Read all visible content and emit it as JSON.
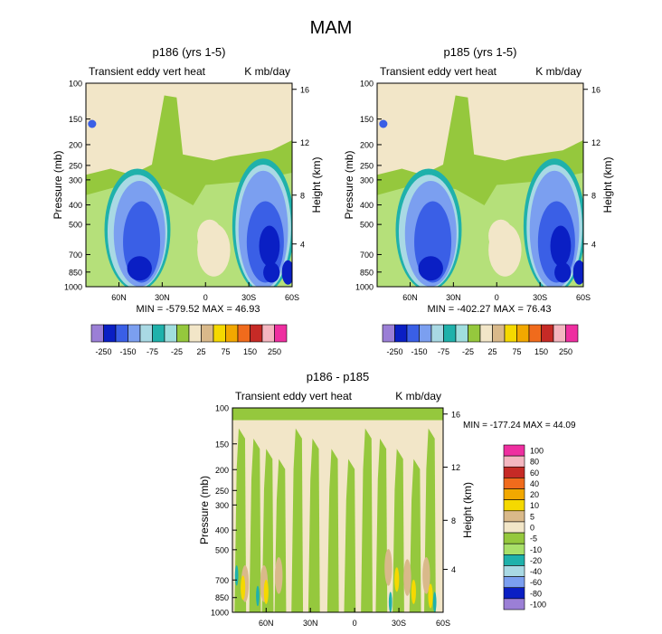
{
  "page_title": "MAM",
  "chart_data": [
    {
      "type": "contour",
      "title": "p186 (yrs 1-5)",
      "subtitle_left": "Transient eddy vert heat",
      "subtitle_right": "K mb/day",
      "xlabel": "",
      "ylabel": "Pressure (mb)",
      "ylabel_right": "Height (km)",
      "x_ticks": [
        "60N",
        "30N",
        "0",
        "30S",
        "60S"
      ],
      "y_ticks": [
        "100",
        "150",
        "200",
        "250",
        "300",
        "400",
        "500",
        "700",
        "850",
        "1000"
      ],
      "y2_ticks": [
        "16",
        "12",
        "8",
        "4"
      ],
      "stats": "MIN = -579.52   MAX = 46.93",
      "levels": [
        -250,
        -200,
        -150,
        -100,
        -75,
        -50,
        -25,
        -10,
        10,
        25,
        50,
        75,
        100,
        150,
        200,
        250
      ],
      "colorbar_labels": [
        "-250",
        "-150",
        "-75",
        "-25",
        "25",
        "75",
        "150",
        "250"
      ],
      "min": -579.52,
      "max": 46.93
    },
    {
      "type": "contour",
      "title": "p185 (yrs 1-5)",
      "subtitle_left": "Transient eddy vert heat",
      "subtitle_right": "K mb/day",
      "xlabel": "",
      "ylabel": "Pressure (mb)",
      "ylabel_right": "Height (km)",
      "x_ticks": [
        "60N",
        "30N",
        "0",
        "30S",
        "60S"
      ],
      "y_ticks": [
        "100",
        "150",
        "200",
        "250",
        "300",
        "400",
        "500",
        "700",
        "850",
        "1000"
      ],
      "y2_ticks": [
        "16",
        "12",
        "8",
        "4"
      ],
      "stats": "MIN = -402.27   MAX = 76.43",
      "levels": [
        -250,
        -200,
        -150,
        -100,
        -75,
        -50,
        -25,
        -10,
        10,
        25,
        50,
        75,
        100,
        150,
        200,
        250
      ],
      "colorbar_labels": [
        "-250",
        "-150",
        "-75",
        "-25",
        "25",
        "75",
        "150",
        "250"
      ],
      "min": -402.27,
      "max": 76.43
    },
    {
      "type": "contour",
      "title": "p186 - p185",
      "subtitle_left": "Transient eddy vert heat",
      "subtitle_right": "K mb/day",
      "xlabel": "",
      "ylabel": "Pressure (mb)",
      "ylabel_right": "Height (km)",
      "x_ticks": [
        "60N",
        "30N",
        "0",
        "30S",
        "60S"
      ],
      "y_ticks": [
        "100",
        "150",
        "200",
        "250",
        "300",
        "400",
        "500",
        "700",
        "850",
        "1000"
      ],
      "y2_ticks": [
        "16",
        "12",
        "8",
        "4"
      ],
      "stats": "MIN = -177.24   MAX = 44.09",
      "levels": [
        -100,
        -80,
        -60,
        -40,
        -20,
        -10,
        -5,
        0,
        5,
        10,
        20,
        40,
        60,
        80,
        100
      ],
      "colorbar_labels": [
        "100",
        "80",
        "60",
        "40",
        "20",
        "10",
        "5",
        "0",
        "-5",
        "-10",
        "-20",
        "-40",
        "-60",
        "-80",
        "-100"
      ],
      "min": -177.24,
      "max": 44.09
    }
  ],
  "colors": {
    "abs_scale": [
      "#9b7fd6",
      "#0a1fc4",
      "#3a5fe6",
      "#7b9ff0",
      "#a9d9e4",
      "#1fb1ab",
      "#a0dede",
      "#95c83d",
      "#f2e6c8",
      "#d9b98a",
      "#f5d900",
      "#f2a800",
      "#f06b1c",
      "#c62a26",
      "#f4b6c0",
      "#ee2fa0"
    ],
    "diff_scale": [
      "#ee2fa0",
      "#f4b6c0",
      "#c62a26",
      "#f06b1c",
      "#f2a800",
      "#f5d900",
      "#d9b98a",
      "#f2e6c8",
      "#95c83d",
      "#a9e06a",
      "#1fb1ab",
      "#a9d9e4",
      "#7b9ff0",
      "#0a1fc4",
      "#9b7fd6"
    ],
    "bg_fill": "#f2e6c8",
    "olive": "#95c83d",
    "light_green": "#b5e07a"
  }
}
